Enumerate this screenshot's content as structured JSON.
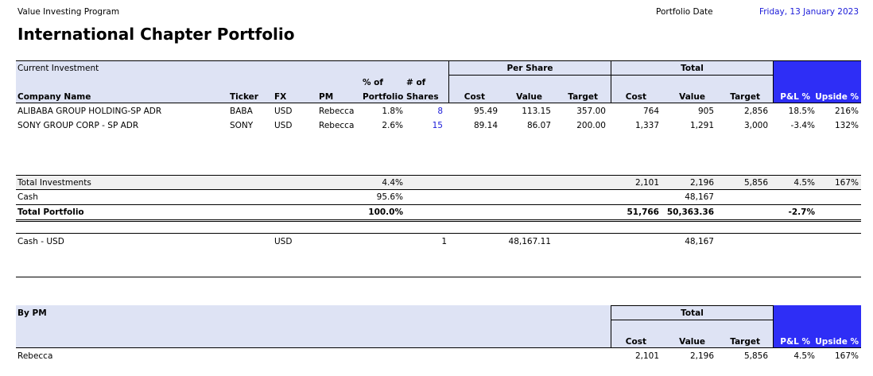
{
  "header": {
    "program": "Value Investing Program",
    "title": "International Chapter Portfolio",
    "date_label": "Portfolio Date",
    "date_value": "Friday, 13 January 2023"
  },
  "current": {
    "section_label": "Current Investment",
    "group_per_share": "Per Share",
    "group_total": "Total",
    "headers": {
      "company": "Company Name",
      "ticker": "Ticker",
      "fx": "FX",
      "pm": "PM",
      "pct_top": "% of",
      "pct_bottom": "Portfolio",
      "shares_top": "# of",
      "shares_bottom": "Shares",
      "ps_cost": "Cost",
      "ps_value": "Value",
      "ps_target": "Target",
      "t_cost": "Cost",
      "t_value": "Value",
      "t_target": "Target",
      "pl": "P&L %",
      "upside": "Upside %"
    },
    "rows": [
      {
        "company": "ALIBABA GROUP HOLDING-SP ADR",
        "ticker": "BABA",
        "fx": "USD",
        "pm": "Rebecca",
        "pct": "1.8%",
        "shares": "8",
        "ps_cost": "95.49",
        "ps_value": "113.15",
        "ps_target": "357.00",
        "t_cost": "764",
        "t_value": "905",
        "t_target": "2,856",
        "pl": "18.5%",
        "upside": "216%"
      },
      {
        "company": "SONY GROUP CORP - SP ADR",
        "ticker": "SONY",
        "fx": "USD",
        "pm": "Rebecca",
        "pct": "2.6%",
        "shares": "15",
        "ps_cost": "89.14",
        "ps_value": "86.07",
        "ps_target": "200.00",
        "t_cost": "1,337",
        "t_value": "1,291",
        "t_target": "3,000",
        "pl": "-3.4%",
        "upside": "132%"
      }
    ]
  },
  "totals": {
    "investments": {
      "label": "Total Investments",
      "pct": "4.4%",
      "t_cost": "2,101",
      "t_value": "2,196",
      "t_target": "5,856",
      "pl": "4.5%",
      "upside": "167%"
    },
    "cash": {
      "label": "Cash",
      "pct": "95.6%",
      "t_value": "48,167"
    },
    "portfolio": {
      "label": "Total Portfolio",
      "pct": "100.0%",
      "t_cost": "51,766",
      "t_value": "50,363.36",
      "pl": "-2.7%"
    }
  },
  "cash_detail": {
    "label": "Cash - USD",
    "fx": "USD",
    "shares": "1",
    "ps_value": "48,167.11",
    "t_value": "48,167"
  },
  "by_pm": {
    "section_label": "By PM",
    "group_total": "Total",
    "headers": {
      "cost": "Cost",
      "value": "Value",
      "target": "Target",
      "pl": "P&L %",
      "upside": "Upside %"
    },
    "rows": [
      {
        "pm": "Rebecca",
        "cost": "2,101",
        "value": "2,196",
        "target": "5,856",
        "pl": "4.5%",
        "upside": "167%"
      }
    ]
  },
  "colors": {
    "header_band": "#dee3f4",
    "accent_blue": "#2e2ef6",
    "link_blue": "#1a1ad8"
  }
}
